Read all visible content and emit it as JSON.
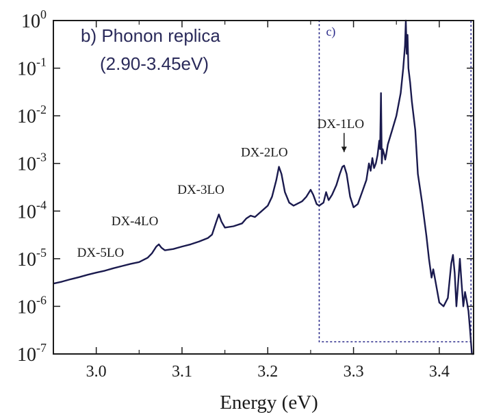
{
  "chart_data": {
    "type": "line",
    "title": "b) Phonon replica",
    "subtitle": "(2.90-3.45eV)",
    "xlabel": "Energy (eV)",
    "ylabel": "",
    "xlim": [
      2.95,
      3.44
    ],
    "ylim": [
      1e-07,
      1
    ],
    "yscale": "log",
    "x_ticks": [
      "3.0",
      "3.1",
      "3.2",
      "3.3",
      "3.4"
    ],
    "x_tick_values": [
      3.0,
      3.1,
      3.2,
      3.3,
      3.4
    ],
    "y_ticks": [
      {
        "base": "10",
        "exp": "0",
        "value": 1
      },
      {
        "base": "10",
        "exp": "-1",
        "value": 0.1
      },
      {
        "base": "10",
        "exp": "-2",
        "value": 0.01
      },
      {
        "base": "10",
        "exp": "-3",
        "value": 0.001
      },
      {
        "base": "10",
        "exp": "-4",
        "value": 0.0001
      },
      {
        "base": "10",
        "exp": "-5",
        "value": 1e-05
      },
      {
        "base": "10",
        "exp": "-6",
        "value": 1e-06
      },
      {
        "base": "10",
        "exp": "-7",
        "value": 1e-07
      }
    ],
    "inset_box": {
      "label": "c)",
      "x_range": [
        3.26,
        3.437
      ],
      "y_range": [
        1.8e-07,
        1
      ]
    },
    "annotations": [
      {
        "text": "DX-5LO",
        "x": 3.005,
        "y": 1.1e-05
      },
      {
        "text": "DX-4LO",
        "x": 3.045,
        "y": 5e-05
      },
      {
        "text": "DX-3LO",
        "x": 3.122,
        "y": 0.00023
      },
      {
        "text": "DX-2LO",
        "x": 3.196,
        "y": 0.0014
      },
      {
        "text": "DX-1LO",
        "x": 3.285,
        "y": 0.0055,
        "arrow_to": 3.289
      }
    ],
    "series": [
      {
        "color": "#1a1a4e",
        "x": [
          2.95,
          2.96,
          2.97,
          2.98,
          2.99,
          3.0,
          3.01,
          3.02,
          3.03,
          3.04,
          3.05,
          3.06,
          3.065,
          3.07,
          3.073,
          3.076,
          3.08,
          3.09,
          3.1,
          3.11,
          3.12,
          3.13,
          3.135,
          3.14,
          3.143,
          3.146,
          3.15,
          3.16,
          3.17,
          3.175,
          3.18,
          3.185,
          3.19,
          3.2,
          3.205,
          3.21,
          3.213,
          3.216,
          3.22,
          3.225,
          3.23,
          3.24,
          3.245,
          3.25,
          3.253,
          3.257,
          3.26,
          3.265,
          3.268,
          3.271,
          3.275,
          3.28,
          3.284,
          3.287,
          3.289,
          3.292,
          3.296,
          3.3,
          3.305,
          3.31,
          3.315,
          3.318,
          3.32,
          3.322,
          3.324,
          3.326,
          3.328,
          3.33,
          3.331,
          3.332,
          3.333,
          3.334,
          3.336,
          3.337,
          3.338,
          3.34,
          3.345,
          3.35,
          3.355,
          3.358,
          3.36,
          3.361,
          3.362,
          3.363,
          3.364,
          3.366,
          3.368,
          3.37,
          3.372,
          3.375,
          3.38,
          3.385,
          3.388,
          3.391,
          3.393,
          3.396,
          3.4,
          3.405,
          3.41,
          3.414,
          3.416,
          3.418,
          3.42,
          3.422,
          3.424,
          3.426,
          3.428,
          3.43,
          3.432,
          3.434,
          3.436,
          3.438,
          3.44
        ],
        "y": [
          3e-06,
          3.3e-06,
          3.7e-06,
          4.1e-06,
          4.6e-06,
          5.1e-06,
          5.6e-06,
          6.3e-06,
          7e-06,
          7.8e-06,
          8.5e-06,
          1.05e-05,
          1.3e-05,
          1.8e-05,
          2e-05,
          1.7e-05,
          1.5e-05,
          1.6e-05,
          1.8e-05,
          2e-05,
          2.3e-05,
          2.7e-05,
          3.2e-05,
          6e-05,
          8.5e-05,
          6e-05,
          4.5e-05,
          4.8e-05,
          5.5e-05,
          7e-05,
          8e-05,
          7.5e-05,
          9e-05,
          0.00013,
          0.0002,
          0.00045,
          0.00085,
          0.0006,
          0.00025,
          0.00015,
          0.00013,
          0.00016,
          0.0002,
          0.00028,
          0.00022,
          0.00014,
          0.00013,
          0.00015,
          0.00025,
          0.00017,
          0.00022,
          0.00035,
          0.0006,
          0.00085,
          0.0009,
          0.0006,
          0.0002,
          0.00012,
          0.00014,
          0.00025,
          0.00045,
          0.001,
          0.0007,
          0.0013,
          0.0008,
          0.001,
          0.0015,
          0.003,
          0.002,
          0.03,
          0.001,
          0.002,
          0.0015,
          0.0012,
          0.0015,
          0.0025,
          0.005,
          0.01,
          0.03,
          0.1,
          0.3,
          1.0,
          0.2,
          0.5,
          0.1,
          0.05,
          0.02,
          0.01,
          0.005,
          0.0006,
          0.00015,
          3e-05,
          1e-05,
          4e-06,
          6e-06,
          3e-06,
          1.2e-06,
          1e-06,
          1.5e-06,
          8e-06,
          1.2e-05,
          5e-06,
          1e-06,
          3e-06,
          1e-05,
          3e-06,
          1e-06,
          2e-06,
          1.3e-06,
          8e-07,
          3e-07,
          1e-07,
          1e-07
        ]
      }
    ]
  }
}
